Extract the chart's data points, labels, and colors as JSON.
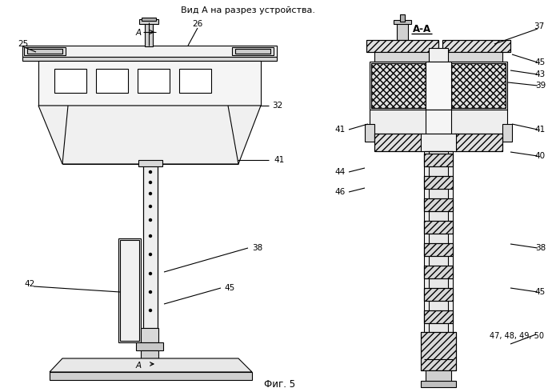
{
  "title": "Вид А на разрез устройства.",
  "subtitle": "Фиг. 5",
  "section_label": "А-А",
  "bg_color": "#ffffff",
  "line_color": "#000000",
  "fig_width": 7.0,
  "fig_height": 4.9,
  "dpi": 100
}
